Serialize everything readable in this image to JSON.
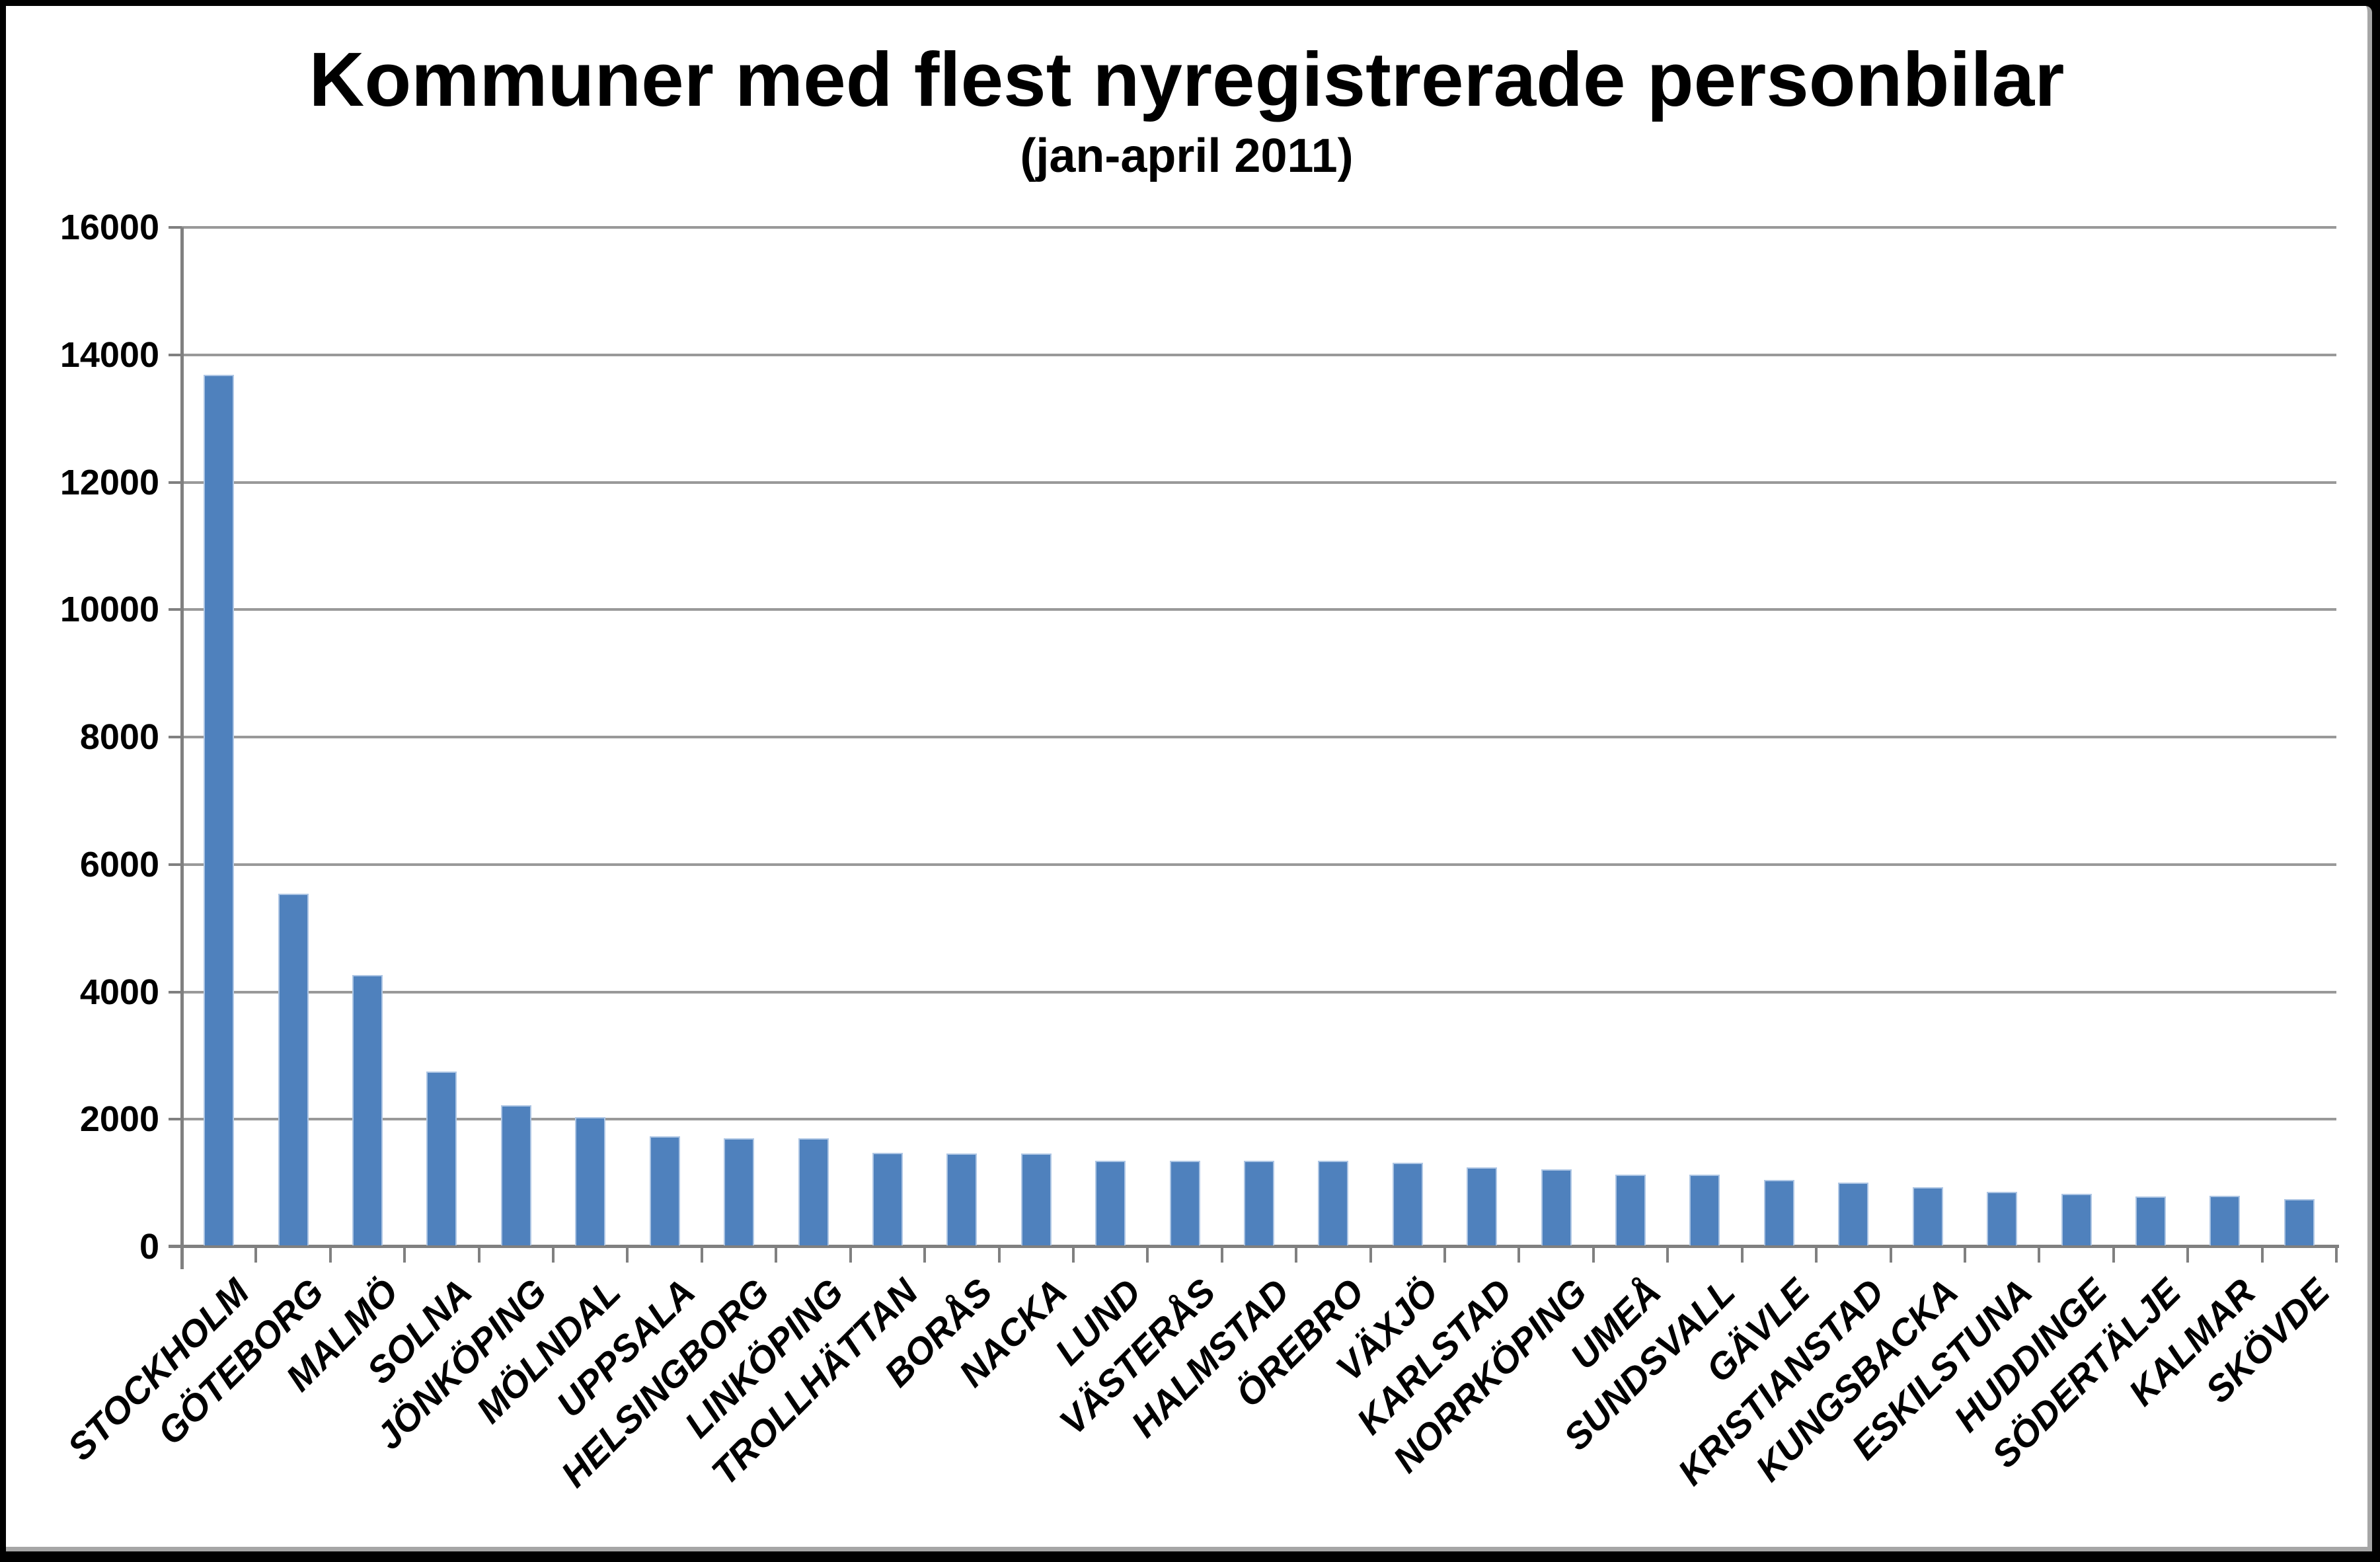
{
  "chart": {
    "title": "Kommuner med flest nyregistrerade personbilar",
    "subtitle": "(jan-april 2011)",
    "colors": {
      "bar_fill": "#4F81BD",
      "bar_edge": "#AEC6E4",
      "gridline": "#999999",
      "axis": "#808080",
      "chart_area_border": "#A6A6A6",
      "outer_frame": "#000000",
      "background": "#FFFFFF",
      "text": "#000000"
    }
  },
  "chart_data": {
    "type": "bar",
    "title": "Kommuner med flest nyregistrerade personbilar",
    "subtitle": "(jan-april 2011)",
    "xlabel": "",
    "ylabel": "",
    "legend": "none",
    "grid": "horizontal",
    "ylim": [
      0,
      16000
    ],
    "ytick_step": 2000,
    "yticks": [
      0,
      2000,
      4000,
      6000,
      8000,
      10000,
      12000,
      14000,
      16000
    ],
    "ytick_labels": [
      "0",
      "2000",
      "4000",
      "6000",
      "8000",
      "10000",
      "12000",
      "14000",
      "16000"
    ],
    "categories": [
      "STOCKHOLM",
      "GÖTEBORG",
      "MALMÖ",
      "SOLNA",
      "JÖNKÖPING",
      "MÖLNDAL",
      "UPPSALA",
      "HELSINGBORG",
      "LINKÖPING",
      "TROLLHÄTTAN",
      "BORÅS",
      "NACKA",
      "LUND",
      "VÄSTERÅS",
      "HALMSTAD",
      "ÖREBRO",
      "VÄXJÖ",
      "KARLSTAD",
      "NORRKÖPING",
      "UMEÅ",
      "SUNDSVALL",
      "GÄVLE",
      "KRISTIANSTAD",
      "KUNGSBACKA",
      "ESKILSTUNA",
      "HUDDINGE",
      "SÖDERTÄLJE",
      "KALMAR",
      "SKÖVDE"
    ],
    "values": [
      13670,
      5520,
      4240,
      2730,
      2200,
      2010,
      1715,
      1680,
      1680,
      1450,
      1445,
      1445,
      1330,
      1330,
      1330,
      1330,
      1300,
      1225,
      1190,
      1110,
      1110,
      1030,
      990,
      915,
      840,
      805,
      770,
      775,
      730
    ]
  }
}
